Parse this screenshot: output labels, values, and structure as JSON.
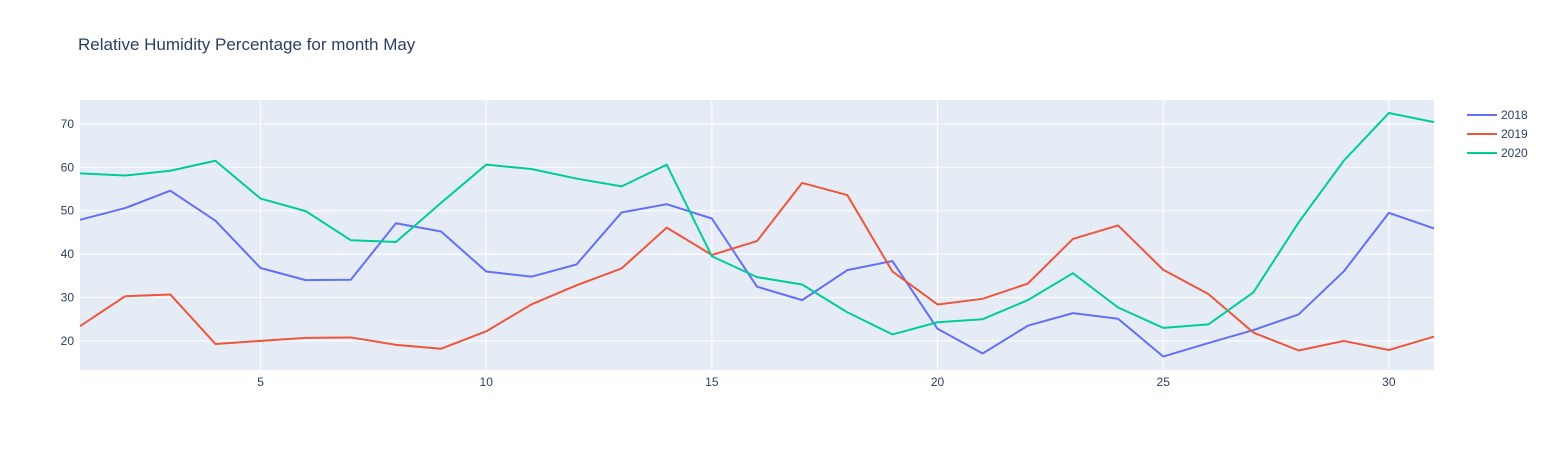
{
  "chart_data": {
    "type": "line",
    "title": "Relative Humidity Percentage for month May",
    "xlabel": "",
    "ylabel": "",
    "x": [
      1,
      2,
      3,
      4,
      5,
      6,
      7,
      8,
      9,
      10,
      11,
      12,
      13,
      14,
      15,
      16,
      17,
      18,
      19,
      20,
      21,
      22,
      23,
      24,
      25,
      26,
      27,
      28,
      29,
      30,
      31
    ],
    "xlim": [
      1,
      31
    ],
    "ylim": [
      13.3,
      75.5
    ],
    "x_ticks": [
      5,
      10,
      15,
      20,
      25,
      30
    ],
    "y_ticks": [
      20,
      30,
      40,
      50,
      60,
      70
    ],
    "grid": true,
    "legend_position": "top-right",
    "background_color": "#e5ecf6",
    "series": [
      {
        "name": "2018",
        "color": "#636efa",
        "values": [
          47.9,
          50.6,
          54.6,
          47.7,
          36.8,
          34.0,
          34.1,
          47.1,
          45.2,
          36.0,
          34.8,
          37.6,
          49.6,
          51.5,
          48.2,
          32.5,
          29.4,
          36.3,
          38.4,
          22.8,
          17.1,
          23.5,
          26.4,
          25.1,
          16.4,
          19.5,
          22.5,
          26.1,
          36.0,
          49.5,
          45.9
        ]
      },
      {
        "name": "2019",
        "color": "#ef553b",
        "values": [
          23.4,
          30.3,
          30.7,
          19.3,
          20.0,
          20.7,
          20.8,
          19.1,
          18.2,
          22.2,
          28.4,
          32.8,
          36.7,
          46.1,
          39.8,
          43.0,
          56.4,
          53.6,
          36.0,
          28.4,
          29.7,
          33.2,
          43.5,
          46.6,
          36.4,
          30.8,
          21.9,
          17.8,
          20.0,
          17.9,
          21.0
        ]
      },
      {
        "name": "2020",
        "color": "#00cc96",
        "values": [
          58.6,
          58.1,
          59.2,
          61.5,
          52.8,
          49.9,
          43.2,
          42.8,
          51.8,
          60.6,
          59.6,
          57.4,
          55.6,
          60.6,
          39.5,
          34.7,
          33.0,
          26.6,
          21.5,
          24.3,
          25.0,
          29.4,
          35.6,
          27.7,
          23.0,
          23.8,
          31.2,
          47.3,
          61.5,
          72.5,
          70.4
        ]
      }
    ]
  }
}
